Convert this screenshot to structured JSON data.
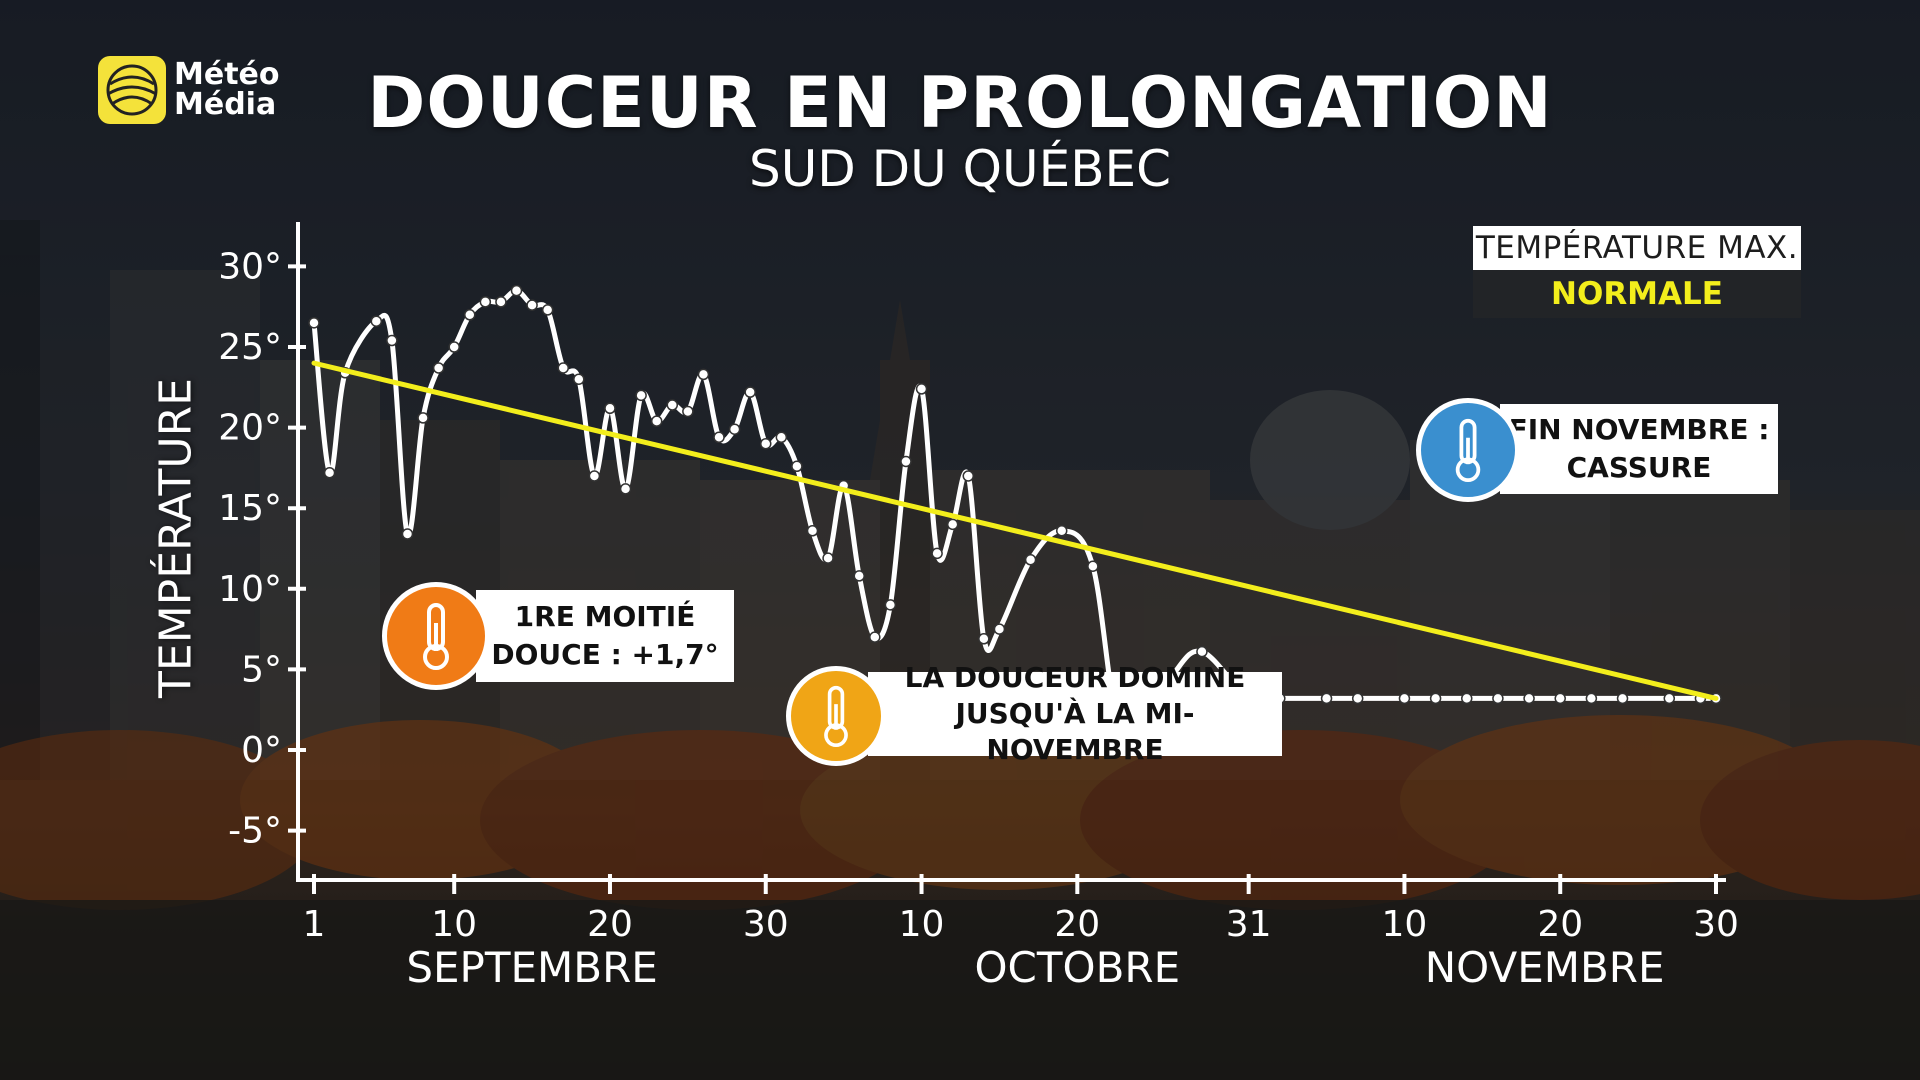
{
  "brand": {
    "line1": "Météo",
    "line2": "Média"
  },
  "header": {
    "title": "DOUCEUR EN PROLONGATION",
    "subtitle": "SUD DU QUÉBEC"
  },
  "legend": {
    "max_label": "TEMPÉRATURE MAX.",
    "normal_label": "NORMALE"
  },
  "callouts": [
    {
      "line1": "1RE MOITIÉ",
      "line2": "DOUCE : +1,7°",
      "icon": "thermometer-icon",
      "color": "#f07b16"
    },
    {
      "line1": "LA DOUCEUR DOMINE",
      "line2": "JUSQU'À LA MI-NOVEMBRE",
      "icon": "thermometer-icon",
      "color": "#f0a516"
    },
    {
      "line1": "FIN NOVEMBRE :",
      "line2": "CASSURE",
      "icon": "thermometer-icon",
      "color": "#3a8fcf"
    }
  ],
  "colors": {
    "max_line": "#ffffff",
    "normal_line": "#f3ee1c",
    "logo": "#f4e23a"
  },
  "chart_data": {
    "type": "line",
    "ylabel": "TEMPÉRATURE",
    "ylim": [
      -8,
      33
    ],
    "y_ticks": [
      30,
      25,
      20,
      15,
      10,
      5,
      0,
      -5
    ],
    "y_tick_labels": [
      "30°",
      "25°",
      "20°",
      "15°",
      "10°",
      "5°",
      "0°",
      "-5°"
    ],
    "x_ticks": [
      1,
      10,
      20,
      30,
      40,
      50,
      61,
      71,
      81,
      91
    ],
    "x_tick_labels": [
      "1",
      "10",
      "20",
      "30",
      "10",
      "20",
      "31",
      "10",
      "20",
      "30"
    ],
    "months": [
      {
        "label": "SEPTEMBRE",
        "center": 15
      },
      {
        "label": "OCTOBRE",
        "center": 50
      },
      {
        "label": "NOVEMBRE",
        "center": 80
      }
    ],
    "series": [
      {
        "name": "TEMPÉRATURE MAX.",
        "x": [
          1,
          2,
          3,
          5,
          6,
          7,
          8,
          9,
          10,
          11,
          12,
          13,
          14,
          15,
          16,
          17,
          18,
          19,
          20,
          21,
          22,
          23,
          24,
          25,
          26,
          27,
          28,
          29,
          30,
          31,
          32,
          33,
          34,
          35,
          36,
          37,
          38,
          39,
          40,
          41,
          42,
          43,
          44,
          45,
          47,
          49,
          51,
          53,
          56,
          58,
          61,
          63,
          66,
          68,
          71,
          73,
          75,
          77,
          79,
          81,
          83,
          85,
          88,
          90,
          91
        ],
        "values": [
          26.5,
          17.2,
          23.4,
          26.6,
          25.4,
          13.4,
          20.6,
          23.7,
          25.0,
          27.0,
          27.8,
          27.8,
          28.5,
          27.6,
          27.3,
          23.7,
          23.0,
          17.0,
          21.2,
          16.2,
          22.0,
          20.4,
          21.4,
          21.0,
          23.3,
          19.4,
          19.9,
          22.2,
          19.0,
          19.4,
          17.6,
          13.6,
          11.9,
          16.4,
          10.8,
          7.0,
          9.0,
          17.9,
          22.4,
          12.2,
          14.0,
          17.0,
          6.9,
          7.5,
          11.8,
          13.6,
          11.4,
          0.2,
          4.5,
          6.1,
          3.2,
          3.2,
          3.2,
          3.2,
          3.2,
          3.2,
          3.2,
          3.2,
          3.2,
          3.2,
          3.2,
          3.2,
          3.2,
          3.2,
          3.2
        ]
      },
      {
        "name": "NORMALE",
        "x": [
          1,
          91
        ],
        "values": [
          24.0,
          3.2
        ]
      }
    ]
  }
}
